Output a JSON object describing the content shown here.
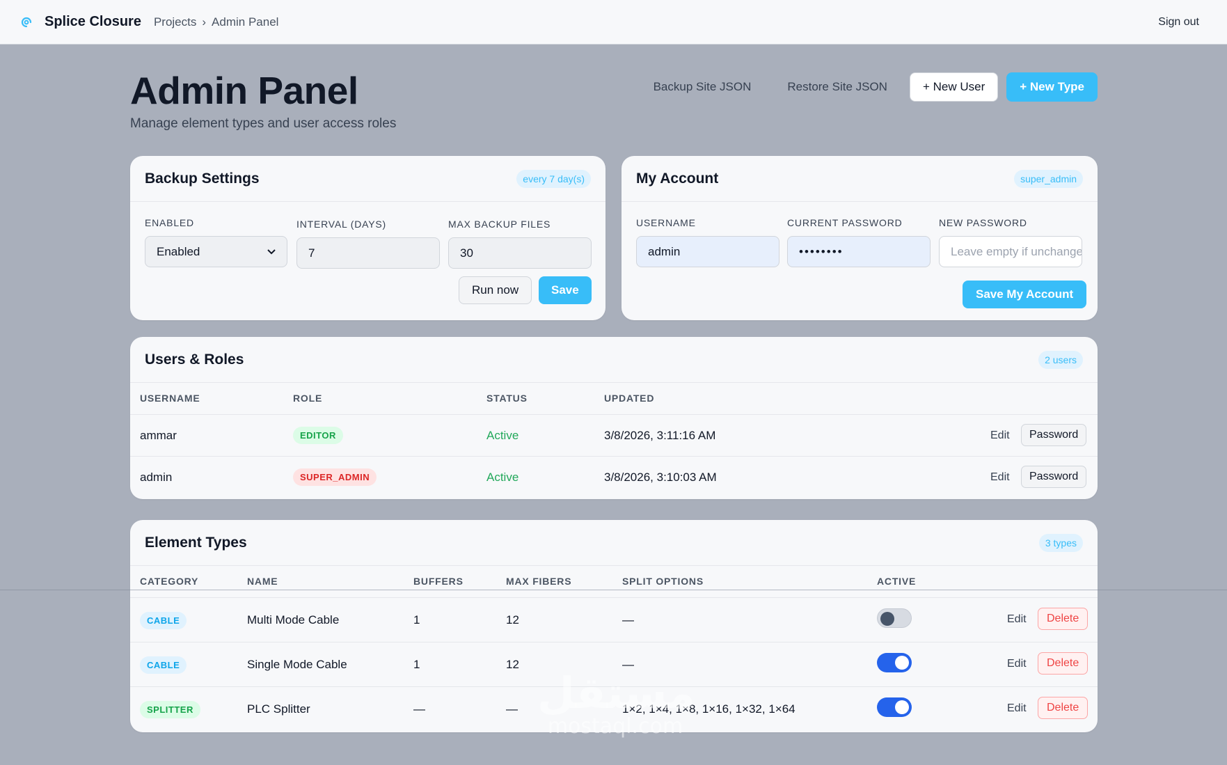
{
  "topbar": {
    "brand": "Splice Closure",
    "breadcrumb": [
      "Projects",
      "Admin Panel"
    ],
    "breadcrumb_sep": "›",
    "sign_out": "Sign out"
  },
  "header": {
    "title": "Admin Panel",
    "subtitle": "Manage element types and user access roles",
    "backup_label": "Backup Site JSON",
    "restore_label": "Restore Site JSON",
    "new_user_label": "+ New User",
    "new_type_label": "+ New Type"
  },
  "backup": {
    "title": "Backup Settings",
    "badge": "every 7 day(s)",
    "enabled_label": "ENABLED",
    "enabled_value": "Enabled",
    "interval_label": "INTERVAL (DAYS)",
    "interval_value": "7",
    "max_label": "MAX BACKUP FILES",
    "max_value": "30",
    "run_label": "Run now",
    "save_label": "Save"
  },
  "account": {
    "title": "My Account",
    "badge": "super_admin",
    "username_label": "USERNAME",
    "username_value": "admin",
    "current_pw_label": "CURRENT PASSWORD",
    "current_pw_value": "••••••••",
    "new_pw_label": "NEW PASSWORD",
    "new_pw_placeholder": "Leave empty if unchanged",
    "save_label": "Save My Account"
  },
  "users": {
    "title": "Users & Roles",
    "badge": "2 users",
    "columns": [
      "USERNAME",
      "ROLE",
      "STATUS",
      "UPDATED"
    ],
    "rows": [
      {
        "username": "ammar",
        "role": "EDITOR",
        "status": "Active",
        "updated": "3/8/2026, 3:11:16 AM",
        "edit": "Edit",
        "password": "Password"
      },
      {
        "username": "admin",
        "role": "SUPER_ADMIN",
        "status": "Active",
        "updated": "3/8/2026, 3:10:03 AM",
        "edit": "Edit",
        "password": "Password"
      }
    ]
  },
  "types": {
    "title": "Element Types",
    "badge": "3 types",
    "columns": [
      "CATEGORY",
      "NAME",
      "BUFFERS",
      "MAX FIBERS",
      "SPLIT OPTIONS",
      "ACTIVE"
    ],
    "rows": [
      {
        "category": "CABLE",
        "name": "Multi Mode Cable",
        "buffers": "1",
        "max_fibers": "12",
        "split": "—",
        "active": false,
        "edit": "Edit",
        "delete": "Delete"
      },
      {
        "category": "CABLE",
        "name": "Single Mode Cable",
        "buffers": "1",
        "max_fibers": "12",
        "split": "—",
        "active": true,
        "edit": "Edit",
        "delete": "Delete"
      },
      {
        "category": "SPLITTER",
        "name": "PLC Splitter",
        "buffers": "—",
        "max_fibers": "—",
        "split": "1×2, 1×4, 1×8, 1×16, 1×32, 1×64",
        "active": true,
        "edit": "Edit",
        "delete": "Delete"
      }
    ]
  },
  "watermark": {
    "arabic": "مستقل",
    "latin": "mostaql.com"
  },
  "colors": {
    "accent": "#38bdf8",
    "toggle_on": "#2563eb",
    "background": "#a9afbb"
  }
}
